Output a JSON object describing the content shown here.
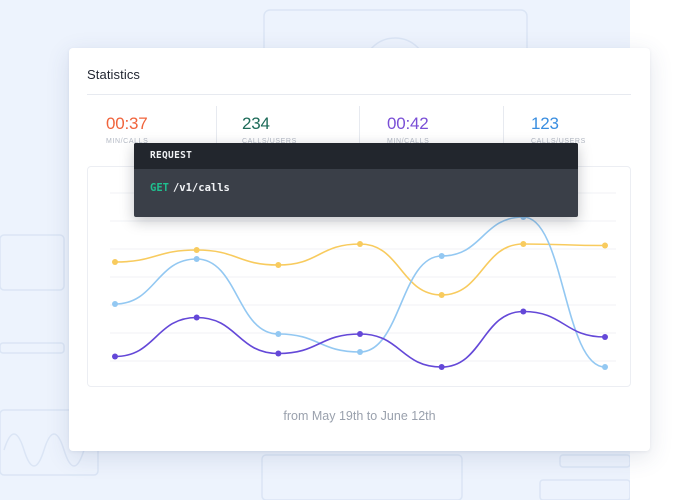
{
  "card": {
    "title": "Statistics",
    "date_range": "from May 19th to June 12th"
  },
  "stats": [
    {
      "value": "00:37",
      "label": "MIN/CALLS",
      "color": "#f0643c"
    },
    {
      "value": "234",
      "label": "CALLS/USERS",
      "color": "#1d6b59"
    },
    {
      "value": "00:42",
      "label": "MIN/CALLS",
      "color": "#7a4fd6"
    },
    {
      "value": "123",
      "label": "CALLS/USERS",
      "color": "#3a8ee0"
    }
  ],
  "request": {
    "header": "REQUEST",
    "method": "GET",
    "path": "/v1/calls"
  },
  "chart_data": {
    "type": "line",
    "x": [
      1,
      2,
      3,
      4,
      5,
      6,
      7
    ],
    "grid": true,
    "series": [
      {
        "color": "#f8cb5e",
        "values": [
          70,
          78,
          68,
          82,
          48,
          82,
          81
        ]
      },
      {
        "color": "#93c8f2",
        "values": [
          42,
          72,
          22,
          10,
          74,
          100,
          0
        ]
      },
      {
        "color": "#6448d8",
        "values": [
          7,
          33,
          9,
          22,
          0,
          37,
          20
        ]
      }
    ],
    "ylim": [
      0,
      100
    ]
  }
}
